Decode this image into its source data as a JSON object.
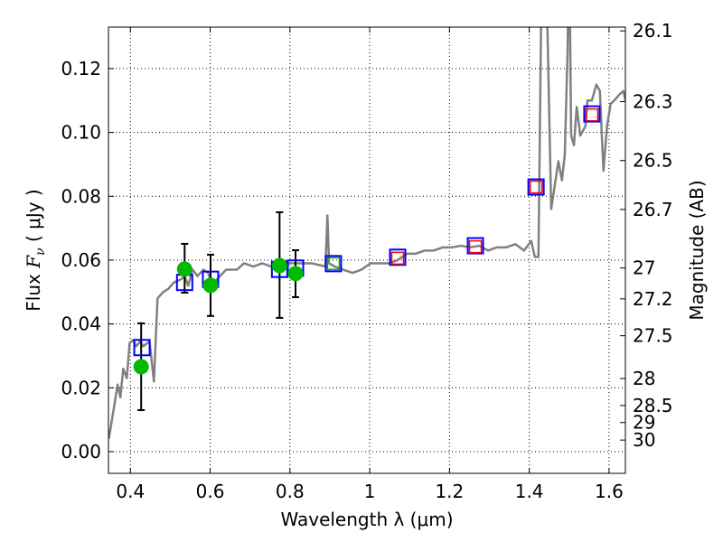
{
  "chart_data": {
    "type": "scatter",
    "title": "",
    "xlabel": "Wavelength  λ (μm)",
    "ylabel": "Flux  F_ν  ( μJy )",
    "ylabel_parts": {
      "pre": "Flux  ",
      "var": "F",
      "sub": "ν",
      "post": "  ( μJy )"
    },
    "y2label": "Magnitude (AB)",
    "xlim": [
      0.345,
      1.641
    ],
    "ylim": [
      -0.0068,
      0.133
    ],
    "grid": true,
    "xticks": [
      0.4,
      0.6,
      0.8,
      1.0,
      1.2,
      1.4,
      1.6
    ],
    "xtick_labels": [
      "0.4",
      "0.6",
      "0.8",
      "1",
      "1.2",
      "1.4",
      "1.6"
    ],
    "yticks": [
      0.0,
      0.02,
      0.04,
      0.06,
      0.08,
      0.1,
      0.12
    ],
    "ytick_labels": [
      "0.00",
      "0.02",
      "0.04",
      "0.06",
      "0.08",
      "0.10",
      "0.12"
    ],
    "y2ticks": [
      26.1,
      26.3,
      26.5,
      26.7,
      27,
      27.2,
      27.5,
      28,
      28.5,
      29,
      30
    ],
    "y2tick_labels": [
      "26.1",
      "26.3",
      "26.5",
      "26.7",
      "27",
      "27.2",
      "27.5",
      "28",
      "28.5",
      "29",
      "30"
    ],
    "colors": {
      "model": "#808080",
      "observed": "#00bb00",
      "model_phot": "#0000ff",
      "pred": "#ff0000",
      "pred_green": "#00aa00",
      "err": "#000000"
    },
    "series": [
      {
        "name": "model spectrum",
        "kind": "line",
        "points": [
          [
            0.346,
            0.004
          ],
          [
            0.359,
            0.014
          ],
          [
            0.368,
            0.021
          ],
          [
            0.375,
            0.017
          ],
          [
            0.382,
            0.026
          ],
          [
            0.391,
            0.023
          ],
          [
            0.398,
            0.034
          ],
          [
            0.407,
            0.035
          ],
          [
            0.414,
            0.033
          ],
          [
            0.425,
            0.0345
          ],
          [
            0.432,
            0.033
          ],
          [
            0.448,
            0.0345
          ],
          [
            0.459,
            0.022
          ],
          [
            0.468,
            0.048
          ],
          [
            0.482,
            0.05
          ],
          [
            0.495,
            0.051
          ],
          [
            0.509,
            0.053
          ],
          [
            0.527,
            0.054
          ],
          [
            0.536,
            0.055
          ],
          [
            0.545,
            0.052
          ],
          [
            0.556,
            0.057
          ],
          [
            0.568,
            0.055
          ],
          [
            0.583,
            0.057
          ],
          [
            0.595,
            0.056
          ],
          [
            0.608,
            0.051
          ],
          [
            0.617,
            0.054
          ],
          [
            0.64,
            0.057
          ],
          [
            0.667,
            0.057
          ],
          [
            0.685,
            0.059
          ],
          [
            0.708,
            0.058
          ],
          [
            0.731,
            0.059
          ],
          [
            0.753,
            0.058
          ],
          [
            0.776,
            0.06
          ],
          [
            0.789,
            0.058
          ],
          [
            0.798,
            0.059
          ],
          [
            0.821,
            0.059
          ],
          [
            0.855,
            0.059
          ],
          [
            0.889,
            0.058
          ],
          [
            0.894,
            0.074
          ],
          [
            0.898,
            0.059
          ],
          [
            0.912,
            0.058
          ],
          [
            0.934,
            0.057
          ],
          [
            0.957,
            0.056
          ],
          [
            0.979,
            0.057
          ],
          [
            1.002,
            0.059
          ],
          [
            1.025,
            0.059
          ],
          [
            1.048,
            0.059
          ],
          [
            1.07,
            0.06
          ],
          [
            1.093,
            0.062
          ],
          [
            1.115,
            0.062
          ],
          [
            1.138,
            0.063
          ],
          [
            1.161,
            0.063
          ],
          [
            1.183,
            0.064
          ],
          [
            1.206,
            0.064
          ],
          [
            1.229,
            0.0645
          ],
          [
            1.251,
            0.064
          ],
          [
            1.274,
            0.0645
          ],
          [
            1.297,
            0.063
          ],
          [
            1.319,
            0.064
          ],
          [
            1.342,
            0.064
          ],
          [
            1.365,
            0.065
          ],
          [
            1.387,
            0.063
          ],
          [
            1.405,
            0.066
          ],
          [
            1.414,
            0.061
          ],
          [
            1.423,
            0.061
          ],
          [
            1.432,
            0.16
          ],
          [
            1.441,
            0.16
          ],
          [
            1.455,
            0.076
          ],
          [
            1.473,
            0.091
          ],
          [
            1.482,
            0.085
          ],
          [
            1.489,
            0.093
          ],
          [
            1.496,
            0.125
          ],
          [
            1.5,
            0.16
          ],
          [
            1.505,
            0.099
          ],
          [
            1.512,
            0.096
          ],
          [
            1.519,
            0.108
          ],
          [
            1.528,
            0.099
          ],
          [
            1.541,
            0.102
          ],
          [
            1.546,
            0.11
          ],
          [
            1.557,
            0.11
          ],
          [
            1.568,
            0.115
          ],
          [
            1.577,
            0.113
          ],
          [
            1.582,
            0.099
          ],
          [
            1.586,
            0.088
          ],
          [
            1.595,
            0.102
          ],
          [
            1.604,
            0.109
          ],
          [
            1.613,
            0.11
          ],
          [
            1.627,
            0.112
          ],
          [
            1.636,
            0.113
          ],
          [
            1.641,
            0.11
          ]
        ]
      },
      {
        "name": "observed photometry",
        "kind": "errorbar",
        "points": [
          {
            "x": 0.427,
            "y": 0.0266,
            "lo": 0.013,
            "hi": 0.0402
          },
          {
            "x": 0.536,
            "y": 0.0572,
            "lo": 0.0498,
            "hi": 0.0651
          },
          {
            "x": 0.601,
            "y": 0.0521,
            "lo": 0.0425,
            "hi": 0.0617
          },
          {
            "x": 0.774,
            "y": 0.0583,
            "lo": 0.0419,
            "hi": 0.075
          },
          {
            "x": 0.814,
            "y": 0.0558,
            "lo": 0.0484,
            "hi": 0.0631
          }
        ]
      },
      {
        "name": "model photometry",
        "kind": "square-blue",
        "points": [
          [
            0.429,
            0.0326
          ],
          [
            0.536,
            0.053
          ],
          [
            0.601,
            0.054
          ],
          [
            0.774,
            0.0571
          ],
          [
            0.814,
            0.0575
          ],
          [
            0.909,
            0.0589
          ],
          [
            1.07,
            0.0609
          ],
          [
            1.265,
            0.0645
          ],
          [
            1.417,
            0.0829
          ],
          [
            1.557,
            0.1058
          ]
        ]
      },
      {
        "name": "predicted photometry (green)",
        "kind": "square-green",
        "points": [
          [
            0.909,
            0.0589
          ]
        ]
      },
      {
        "name": "predicted photometry (red)",
        "kind": "square-red",
        "points": [
          [
            1.07,
            0.0606
          ],
          [
            1.265,
            0.0642
          ],
          [
            1.417,
            0.0829
          ],
          [
            1.557,
            0.1055
          ]
        ]
      }
    ]
  }
}
